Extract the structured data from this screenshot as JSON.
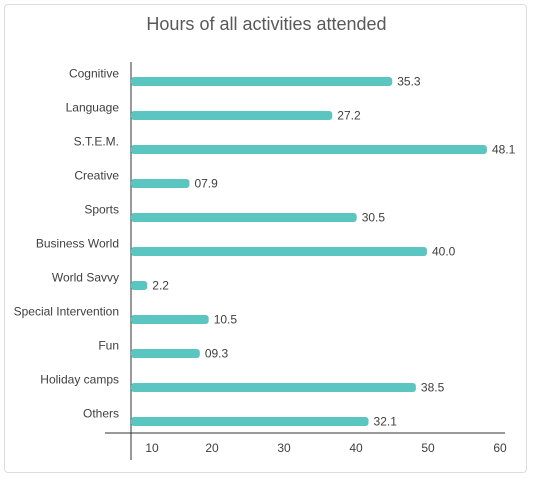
{
  "chart_data": {
    "type": "bar",
    "orientation": "horizontal",
    "title": "Hours of  all activities attended",
    "xlabel": "",
    "ylabel": "",
    "categories": [
      "Cognitive",
      "Language",
      "S.T.E.M.",
      "Creative",
      "Sports",
      "Business World",
      "World Savvy",
      "Special Intervention",
      "Fun",
      "Holiday camps",
      "Others"
    ],
    "values": [
      35.3,
      27.2,
      48.1,
      7.9,
      30.5,
      40.0,
      2.2,
      10.5,
      9.3,
      38.5,
      32.1
    ],
    "value_labels": [
      "35.3",
      "27.2",
      "48.1",
      "07.9",
      "30.5",
      "40.0",
      "2.2",
      "10.5",
      "09.3",
      "38.5",
      "32.1"
    ],
    "x_ticks": [
      "10",
      "20",
      "30",
      "40",
      "50",
      "60"
    ],
    "xlim": [
      0,
      60
    ],
    "grid": false,
    "legend": "none",
    "bar_color": "#5BC5C1"
  }
}
